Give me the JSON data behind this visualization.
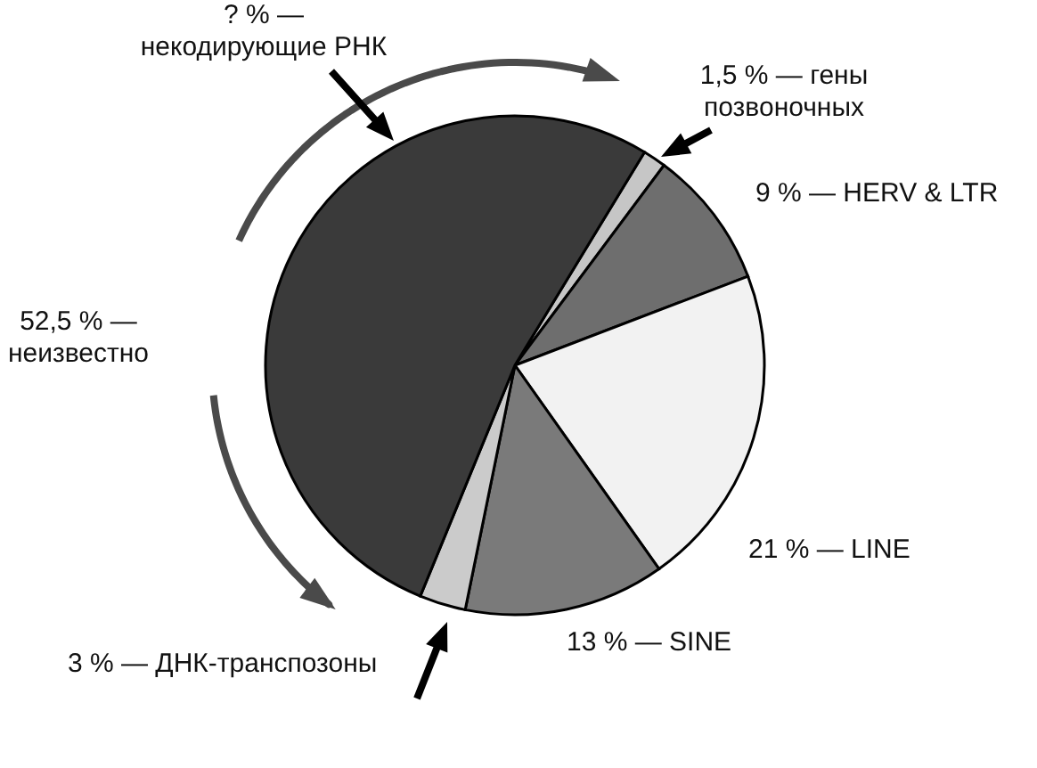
{
  "chart_data": {
    "type": "pie",
    "categories": [
      "1,5 % — гены\nпозвоночных",
      "9 % — HERV & LTR",
      "21 % — LINE",
      "13 % — SINE",
      "3 % — ДНК-транспозоны",
      "52,5 % —\nнеизвестно"
    ],
    "values": [
      1.5,
      9,
      21,
      13,
      3,
      52.5
    ],
    "colors": [
      "#c6c6c6",
      "#6e6e6e",
      "#f2f2f2",
      "#7a7a7a",
      "#cbcbcb",
      "#3a3a3a"
    ],
    "annotations": [
      "? % —\nнекодирующие РНК"
    ]
  }
}
